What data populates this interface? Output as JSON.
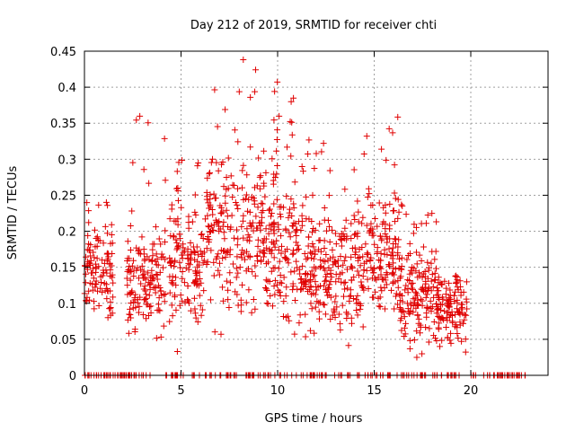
{
  "chart_data": {
    "type": "scatter",
    "title": "Day 212 of 2019, SRMTID for receiver chti",
    "xlabel": "GPS time / hours",
    "ylabel": "SRMTID / TECUs",
    "xlim": [
      0,
      24
    ],
    "ylim": [
      0,
      0.45
    ],
    "x_ticks": [
      0,
      5,
      10,
      15,
      20
    ],
    "x_tick_labels": [
      "0",
      "5",
      "10",
      "15",
      "20"
    ],
    "y_ticks": [
      0,
      0.05,
      0.1,
      0.15,
      0.2,
      0.25,
      0.3,
      0.35,
      0.4,
      0.45
    ],
    "y_tick_labels": [
      "0",
      "0.05",
      "0.1",
      "0.15",
      "0.2",
      "0.25",
      "0.3",
      "0.35",
      "0.4",
      "0.45"
    ],
    "grid": true,
    "marker": "+",
    "series_color": "#e00000",
    "series": [
      {
        "name": "SRMTID",
        "clusters": [
          {
            "start": 0.0,
            "end": 1.5,
            "center": 0.14,
            "spread": 0.045,
            "count": 110,
            "max": 0.25
          },
          {
            "start": 2.2,
            "end": 4.2,
            "center": 0.13,
            "spread": 0.05,
            "count": 150,
            "max": 0.36
          },
          {
            "start": 4.4,
            "end": 6.3,
            "center": 0.15,
            "spread": 0.055,
            "count": 140,
            "max": 0.3
          },
          {
            "start": 6.3,
            "end": 9.6,
            "center": 0.2,
            "spread": 0.075,
            "count": 240,
            "max": 0.45
          },
          {
            "start": 9.6,
            "end": 11.3,
            "center": 0.18,
            "spread": 0.065,
            "count": 140,
            "max": 0.41
          },
          {
            "start": 11.3,
            "end": 14.5,
            "center": 0.14,
            "spread": 0.055,
            "count": 240,
            "max": 0.33
          },
          {
            "start": 14.5,
            "end": 16.3,
            "center": 0.16,
            "spread": 0.06,
            "count": 140,
            "max": 0.36
          },
          {
            "start": 16.3,
            "end": 18.3,
            "center": 0.11,
            "spread": 0.045,
            "count": 160,
            "max": 0.25
          },
          {
            "start": 18.3,
            "end": 19.8,
            "center": 0.09,
            "spread": 0.03,
            "count": 110,
            "max": 0.14
          }
        ],
        "zero_segments": [
          {
            "start": 0.0,
            "end": 2.3,
            "count": 40
          },
          {
            "start": 2.3,
            "end": 3.4,
            "count": 12
          },
          {
            "start": 4.1,
            "end": 5.2,
            "count": 14
          },
          {
            "start": 5.5,
            "end": 8.0,
            "count": 20
          },
          {
            "start": 8.3,
            "end": 12.6,
            "count": 40
          },
          {
            "start": 12.9,
            "end": 13.8,
            "count": 8
          },
          {
            "start": 14.0,
            "end": 16.2,
            "count": 22
          },
          {
            "start": 16.4,
            "end": 19.8,
            "count": 32
          },
          {
            "start": 20.0,
            "end": 22.9,
            "count": 34
          }
        ]
      }
    ]
  }
}
